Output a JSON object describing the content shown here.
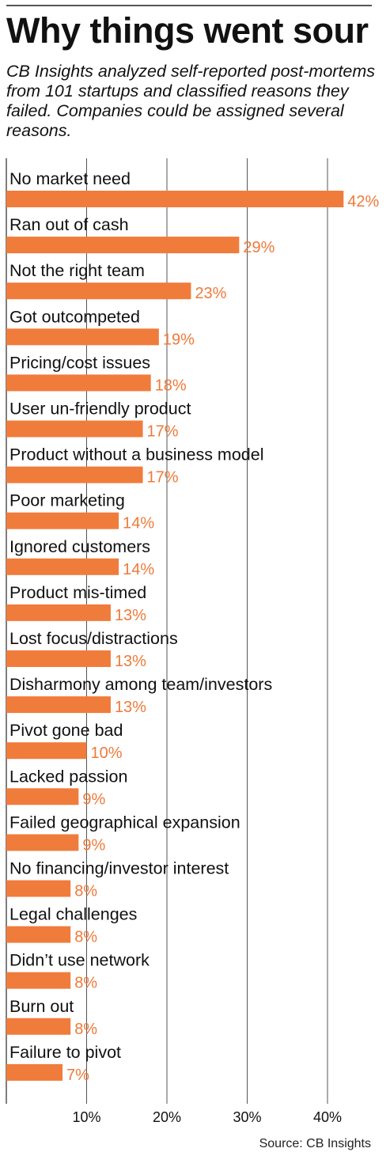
{
  "title": "Why things went sour",
  "subtitle": "CB Insights analyzed self-reported post-mortems from 101 startups and classified reasons they failed. Companies could be assigned several reasons.",
  "source": "Source: CB Insights",
  "colors": {
    "bar": "#f07c3c",
    "value_label": "#ee7a3a",
    "grid": "#555555",
    "text": "#111111"
  },
  "chart_data": {
    "type": "bar",
    "orientation": "horizontal",
    "title": "Why things went sour",
    "categories": [
      "No market need",
      "Ran out of cash",
      "Not the right team",
      "Got outcompeted",
      "Pricing/cost issues",
      "User un-friendly product",
      "Product without a business model",
      "Poor marketing",
      "Ignored customers",
      "Product mis-timed",
      "Lost focus/distractions",
      "Disharmony among team/investors",
      "Pivot gone bad",
      "Lacked passion",
      "Failed geographical expansion",
      "No financing/investor interest",
      "Legal challenges",
      "Didn’t use network",
      "Burn out",
      "Failure to pivot"
    ],
    "values": [
      42,
      29,
      23,
      19,
      18,
      17,
      17,
      14,
      14,
      13,
      13,
      13,
      10,
      9,
      9,
      8,
      8,
      8,
      8,
      7
    ],
    "value_labels": [
      "42%",
      "29%",
      "23%",
      "19%",
      "18%",
      "17%",
      "17%",
      "14%",
      "14%",
      "13%",
      "13%",
      "13%",
      "10%",
      "9%",
      "9%",
      "8%",
      "8%",
      "8%",
      "8%",
      "7%"
    ],
    "xticks": [
      10,
      20,
      30,
      40
    ],
    "xtick_labels": [
      "10%",
      "20%",
      "30%",
      "40%"
    ],
    "xlim": [
      0,
      42
    ],
    "grid": true
  }
}
